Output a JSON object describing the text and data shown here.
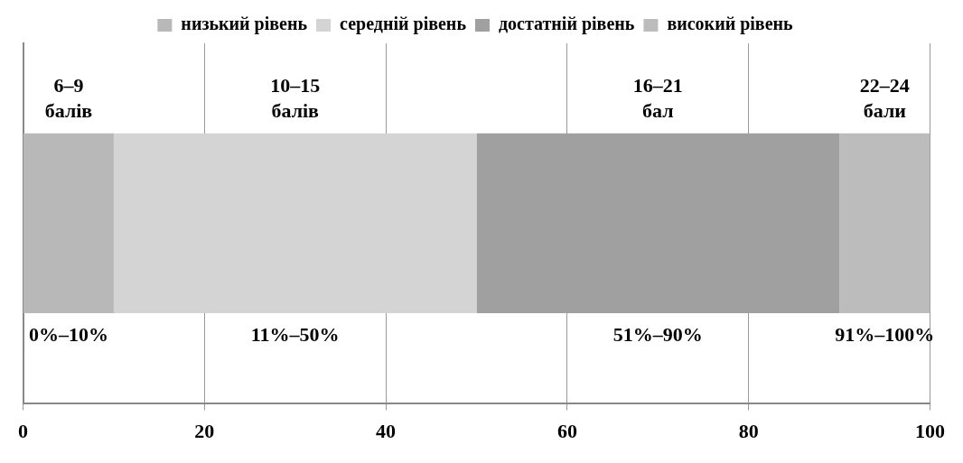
{
  "chart_data": {
    "type": "bar",
    "orientation": "horizontal",
    "stacked": true,
    "categories": [
      null
    ],
    "series": [
      {
        "name": "низький рівень",
        "color": "#b8b8b8",
        "values": [
          10
        ]
      },
      {
        "name": "середній рівень",
        "color": "#d4d4d4",
        "values": [
          40
        ]
      },
      {
        "name": "достатній рівень",
        "color": "#a0a0a0",
        "values": [
          40
        ]
      },
      {
        "name": "високий рівень",
        "color": "#bcbcbc",
        "values": [
          10
        ]
      }
    ],
    "xlim": [
      0,
      100
    ],
    "xticks": [
      0,
      20,
      40,
      60,
      80,
      100
    ],
    "grid": "x",
    "legend": "top",
    "annotations": [
      "6–9 балів",
      "10–15 балів",
      "16–21 бал",
      "22–24 бали",
      "0%–10%",
      "11%–50%",
      "51%–90%",
      "91%–100%"
    ]
  }
}
